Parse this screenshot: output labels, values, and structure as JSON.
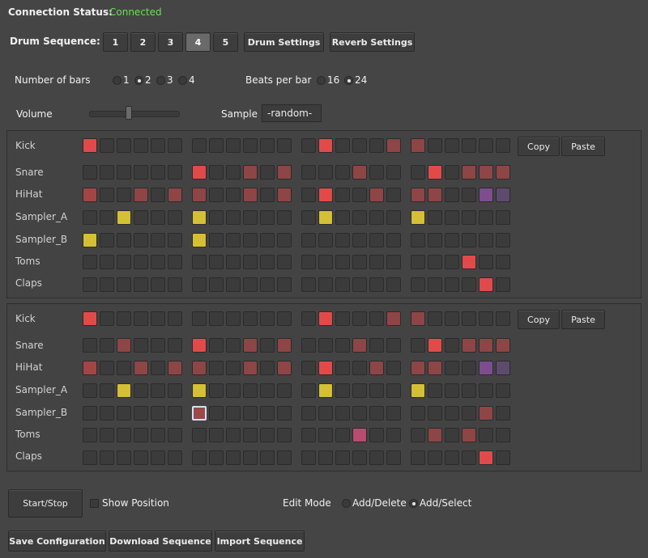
{
  "connection": {
    "label": "Connection Status:",
    "value": "Connected"
  },
  "sequence": {
    "label": "Drum Sequence:",
    "buttons": [
      "1",
      "2",
      "3",
      "4",
      "5"
    ],
    "active_index": 3,
    "drum_settings": "Drum Settings",
    "reverb_settings": "Reverb Settings"
  },
  "bars": {
    "label": "Number of bars",
    "options": [
      "1",
      "2",
      "3",
      "4"
    ],
    "selected": 1
  },
  "beats": {
    "label": "Beats per bar",
    "options": [
      "16",
      "24"
    ],
    "selected": 1
  },
  "volume": {
    "label": "Volume",
    "level": 0.42
  },
  "sample": {
    "label": "Sample",
    "value": "-random-"
  },
  "colors": {
    "red": "#e24a4a",
    "yellow": "#d5bf34",
    "dred": "#8e4545",
    "mred": "#9b4848",
    "pink": "#b84c70",
    "purple": "#7d4d8f",
    "dpurple": "#5e4a6e",
    "hred": "#a44545",
    "empty": "#3b3b3b"
  },
  "tracks": [
    "Kick",
    "Snare",
    "HiHat",
    "Sampler_A",
    "Sampler_B",
    "Toms",
    "Claps"
  ],
  "panel_buttons": {
    "copy": "Copy",
    "paste": "Paste"
  },
  "grids": [
    [
      {
        "0": "red",
        "13": "red",
        "17": "dred",
        "18": "dred"
      },
      {
        "6": "red",
        "9": "dred",
        "11": "dred",
        "15": "dred",
        "19": "red",
        "21": "dred",
        "22": "dred",
        "24": "dred"
      },
      {
        "0": "hred",
        "3": "dred",
        "5": "dred",
        "6": "dred",
        "9": "dred",
        "11": "dred",
        "13": "red",
        "16": "dred",
        "18": "dred",
        "19": "dred",
        "22": "purple",
        "24": "dpurple"
      },
      {
        "2": "yellow",
        "6": "yellow",
        "13": "yellow",
        "18": "yellow"
      },
      {
        "0": "yellow",
        "6": "yellow"
      },
      {
        "21": "red"
      },
      {
        "22": "red"
      }
    ],
    [
      {
        "0": "red",
        "13": "red",
        "17": "dred",
        "18": "dred"
      },
      {
        "2": "dred",
        "6": "red",
        "9": "dred",
        "11": "dred",
        "15": "dred",
        "19": "red",
        "21": "dred",
        "22": "dred",
        "24": "dred"
      },
      {
        "0": "hred",
        "3": "dred",
        "5": "dred",
        "6": "dred",
        "9": "dred",
        "11": "dred",
        "13": "red",
        "16": "dred",
        "18": "dred",
        "19": "dred",
        "22": "purple",
        "24": "dpurple"
      },
      {
        "2": "yellow",
        "6": "yellow",
        "13": "yellow",
        "18": "yellow"
      },
      {
        "6": "mred",
        "22": "dred"
      },
      {
        "15": "pink",
        "19": "dred",
        "21": "dred"
      },
      {
        "22": "red"
      }
    ]
  ],
  "selected_cell": {
    "grid": 1,
    "row": 4,
    "col": 6
  },
  "controls": {
    "start_stop": "Start/Stop",
    "show_position": "Show Position",
    "edit_mode_label": "Edit Mode",
    "edit_modes": [
      "Add/Delete",
      "Add/Select"
    ],
    "edit_mode_selected": 1
  },
  "footer": {
    "save": "Save Configuration",
    "download": "Download Sequence",
    "import": "Import Sequence"
  }
}
